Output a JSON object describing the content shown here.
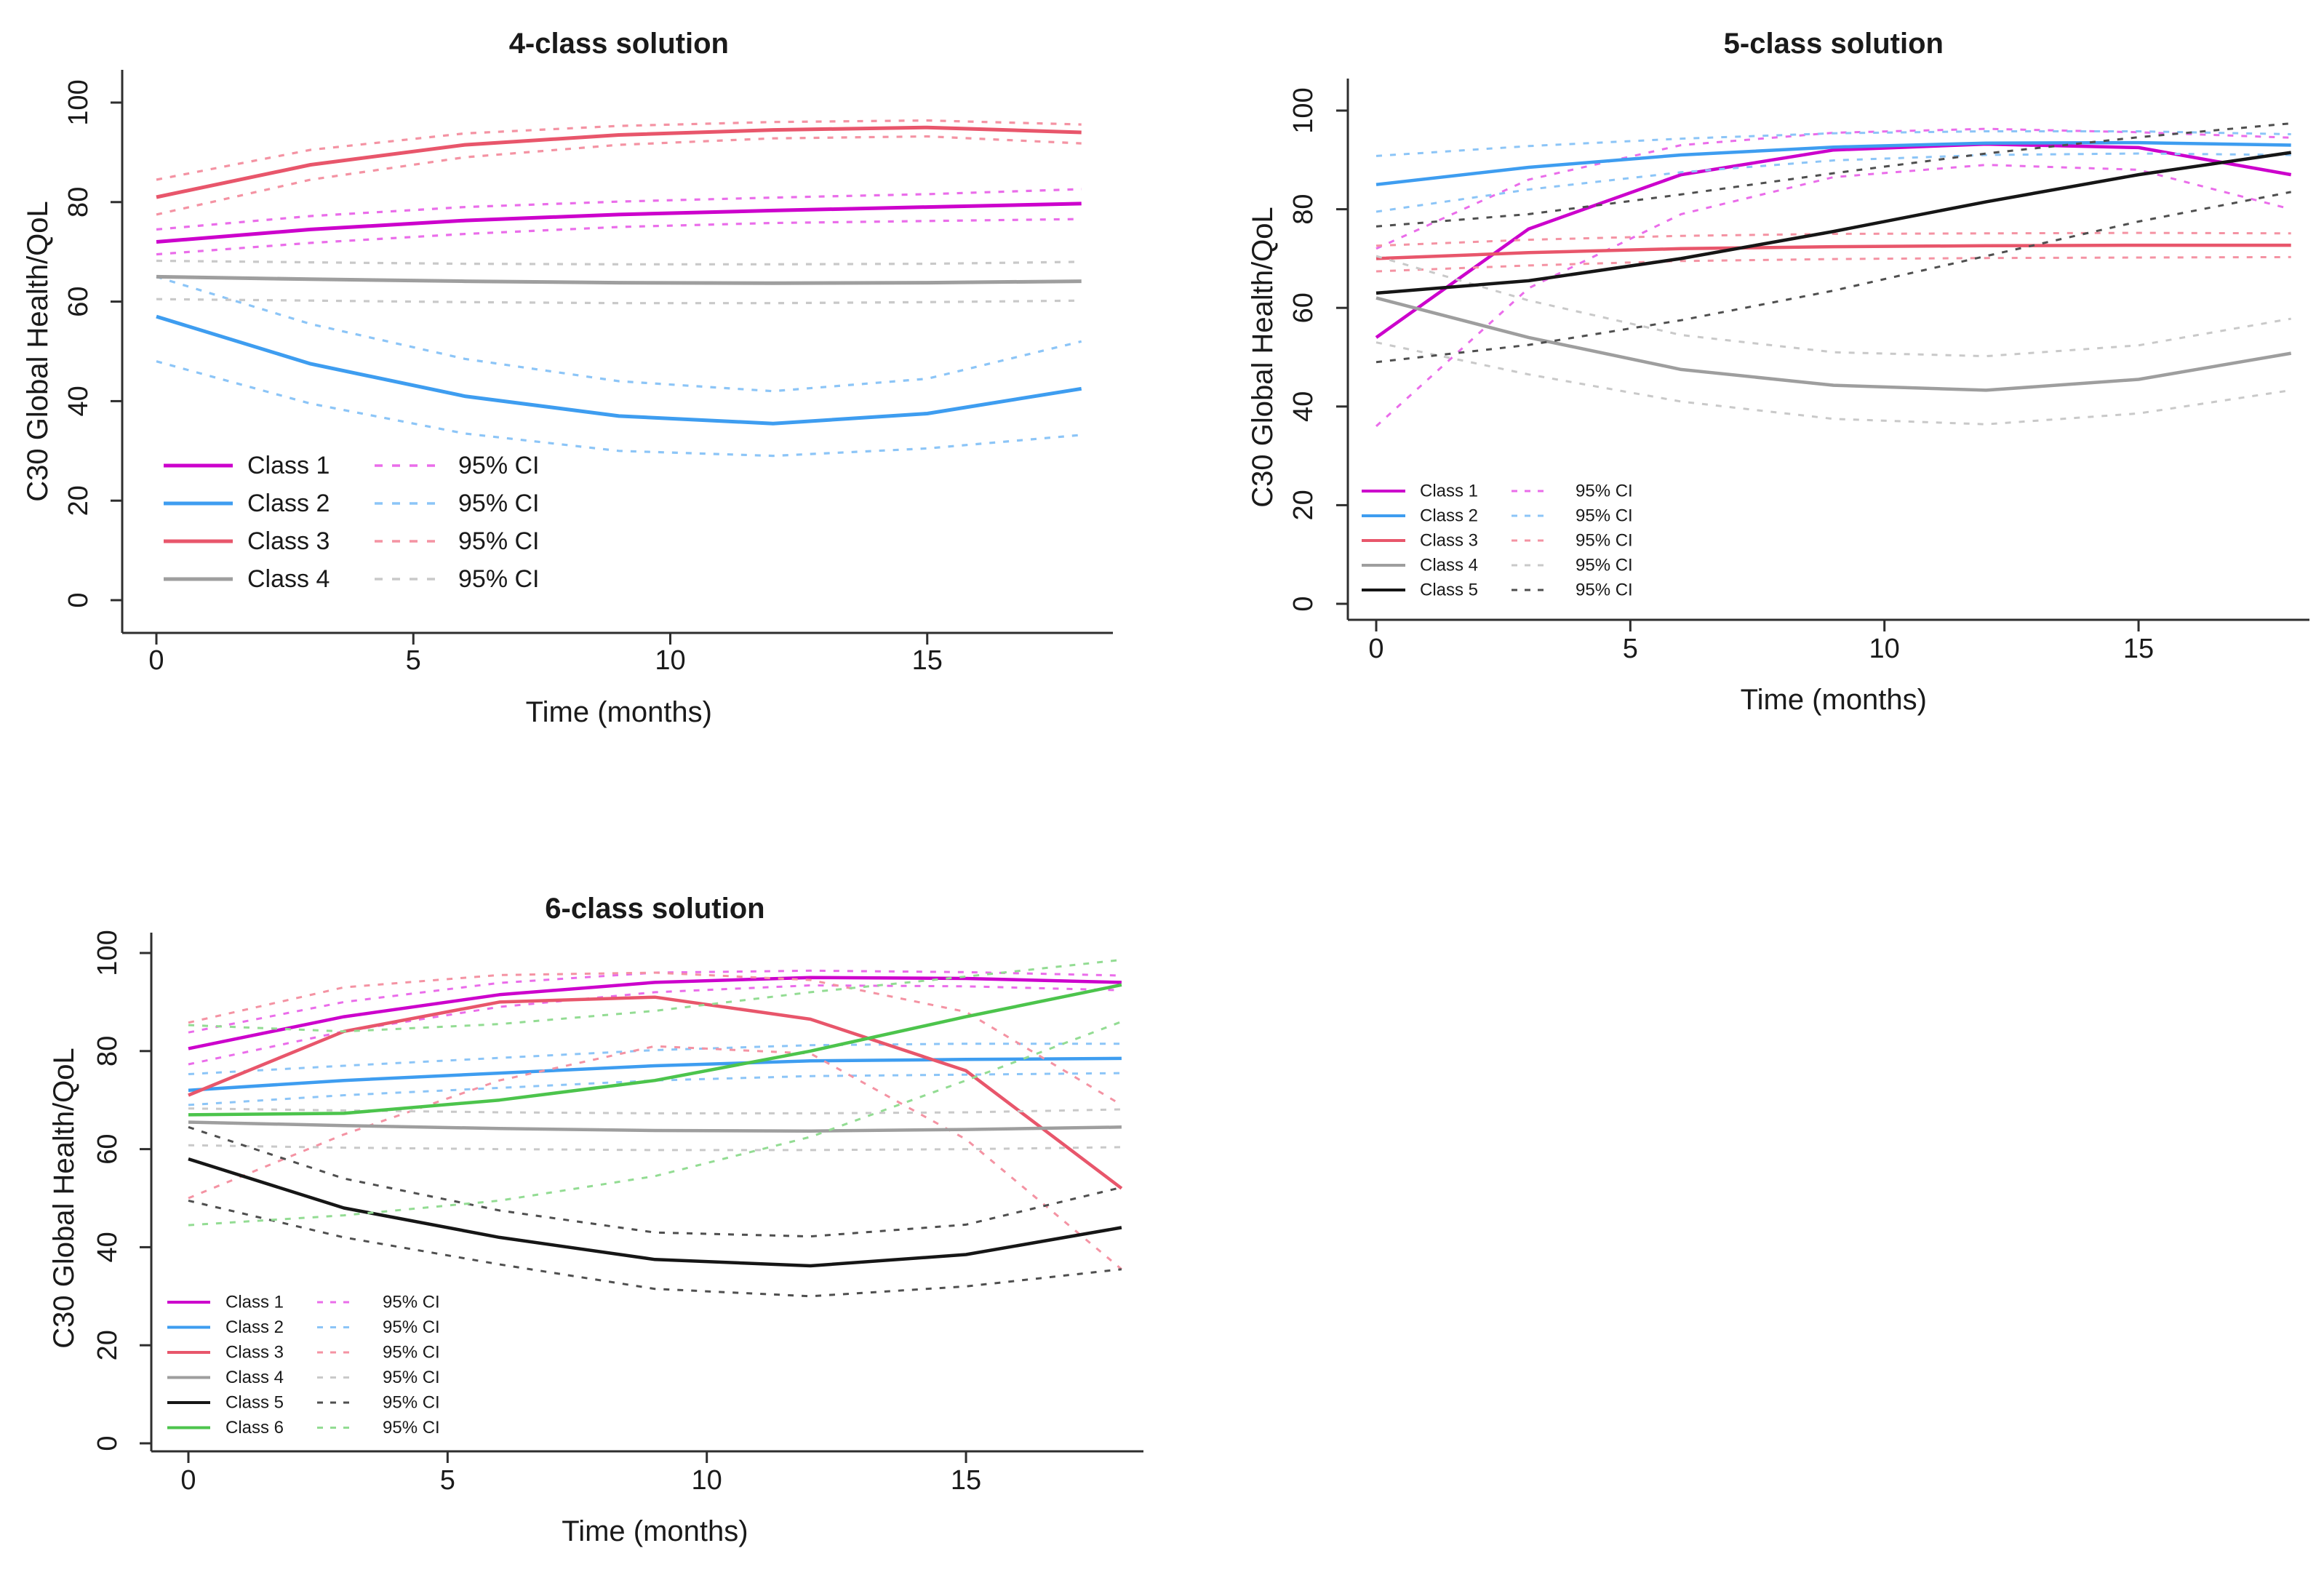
{
  "style": {
    "background": "#ffffff",
    "axis_color": "#2e2e2e",
    "text_color": "#1a1a1a"
  },
  "chart_data": [
    {
      "id": "four-class",
      "type": "line",
      "title": "4-class solution",
      "xlabel": "Time (months)",
      "ylabel": "C30 Global Health/QoL",
      "xlim": [
        0,
        18
      ],
      "ylim": [
        0,
        100
      ],
      "xticks": [
        0,
        5,
        10,
        15
      ],
      "yticks": [
        0,
        20,
        40,
        60,
        80,
        100
      ],
      "grid": false,
      "legend_position": "bottom-left",
      "ci_label": "95% CI",
      "x": [
        0,
        3,
        6,
        9,
        12,
        15,
        18
      ],
      "series": [
        {
          "name": "Class 1",
          "color": "#cc00cc",
          "ci_color": "#ea6dea",
          "mean": [
            72,
            74.5,
            76.3,
            77.5,
            78.3,
            79,
            79.7
          ],
          "lower": [
            69.5,
            71.8,
            73.6,
            75,
            75.8,
            76.2,
            76.6
          ],
          "upper": [
            74.5,
            77.2,
            79,
            80.1,
            80.9,
            81.6,
            82.6
          ]
        },
        {
          "name": "Class 2",
          "color": "#3e9df0",
          "ci_color": "#8cc5f7",
          "mean": [
            57,
            47.5,
            41,
            37,
            35.5,
            37.5,
            42.5
          ],
          "lower": [
            48,
            39.5,
            33.5,
            30,
            29,
            30.5,
            33.2
          ],
          "upper": [
            65,
            55.5,
            48.5,
            44,
            42,
            44.5,
            52
          ]
        },
        {
          "name": "Class 3",
          "color": "#e8566b",
          "ci_color": "#f493a3",
          "mean": [
            81,
            87.5,
            91.5,
            93.5,
            94.5,
            95,
            94
          ],
          "lower": [
            77.5,
            84.5,
            89,
            91.5,
            92.8,
            93.2,
            91.8
          ],
          "upper": [
            84.5,
            90.5,
            93.8,
            95.3,
            96.1,
            96.4,
            95.6
          ]
        },
        {
          "name": "Class 4",
          "color": "#9e9e9e",
          "ci_color": "#c9c9c9",
          "mean": [
            65,
            64.5,
            64.1,
            63.8,
            63.7,
            63.8,
            64.1
          ],
          "lower": [
            60.5,
            60.2,
            59.9,
            59.7,
            59.7,
            59.9,
            60.2
          ],
          "upper": [
            68.2,
            67.9,
            67.6,
            67.5,
            67.5,
            67.6,
            68
          ]
        }
      ]
    },
    {
      "id": "five-class",
      "type": "line",
      "title": "5-class solution",
      "xlabel": "Time (months)",
      "ylabel": "C30 Global Health/QoL",
      "xlim": [
        0,
        18
      ],
      "ylim": [
        0,
        100
      ],
      "xticks": [
        0,
        5,
        10,
        15
      ],
      "yticks": [
        0,
        20,
        40,
        60,
        80,
        100
      ],
      "grid": false,
      "legend_position": "bottom-left",
      "ci_label": "95% CI",
      "x": [
        0,
        3,
        6,
        9,
        12,
        15,
        18
      ],
      "series": [
        {
          "name": "Class 1",
          "color": "#cc00cc",
          "ci_color": "#ea6dea",
          "mean": [
            54,
            76,
            87,
            92,
            93.2,
            92.5,
            87
          ],
          "lower": [
            36,
            64,
            79,
            86.5,
            89,
            88,
            80
          ],
          "upper": [
            72,
            86,
            93,
            95.5,
            96.3,
            95.6,
            94.5
          ]
        },
        {
          "name": "Class 2",
          "color": "#3e9df0",
          "ci_color": "#8cc5f7",
          "mean": [
            85,
            88.5,
            91,
            92.6,
            93.4,
            93.5,
            93
          ],
          "lower": [
            79.5,
            84,
            87.5,
            89.9,
            91,
            91.3,
            91
          ],
          "upper": [
            90.8,
            92.8,
            94.3,
            95.4,
            95.8,
            95.8,
            95.2
          ]
        },
        {
          "name": "Class 3",
          "color": "#e8566b",
          "ci_color": "#f493a3",
          "mean": [
            70,
            71.2,
            72,
            72.4,
            72.6,
            72.7,
            72.7
          ],
          "lower": [
            67.4,
            68.6,
            69.5,
            69.9,
            70.1,
            70.2,
            70.3
          ],
          "upper": [
            72.6,
            73.8,
            74.6,
            75,
            75.1,
            75.2,
            75.1
          ]
        },
        {
          "name": "Class 4",
          "color": "#9e9e9e",
          "ci_color": "#c9c9c9",
          "mean": [
            62,
            54,
            47.5,
            44.3,
            43.3,
            45.5,
            50.8
          ],
          "lower": [
            53,
            46.5,
            41,
            37.5,
            36.4,
            38.6,
            43.3
          ],
          "upper": [
            70.5,
            61.5,
            54.5,
            51,
            50.2,
            52.4,
            57.8
          ]
        },
        {
          "name": "Class 5",
          "color": "#161616",
          "ci_color": "#4f4f4f",
          "mean": [
            63,
            65.5,
            70,
            75.5,
            81.5,
            87,
            91.5
          ],
          "lower": [
            49,
            52.5,
            57.5,
            63.5,
            70.5,
            77.5,
            83.5
          ],
          "upper": [
            76.5,
            79,
            83,
            87.3,
            91.3,
            94.6,
            97.4
          ]
        }
      ]
    },
    {
      "id": "six-class",
      "type": "line",
      "title": "6-class solution",
      "xlabel": "Time (months)",
      "ylabel": "C30 Global Health/QoL",
      "xlim": [
        0,
        18
      ],
      "ylim": [
        0,
        100
      ],
      "xticks": [
        0,
        5,
        10,
        15
      ],
      "yticks": [
        0,
        20,
        40,
        60,
        80,
        100
      ],
      "grid": false,
      "legend_position": "bottom-left",
      "ci_label": "95% CI",
      "x": [
        0,
        3,
        6,
        9,
        12,
        15,
        18
      ],
      "series": [
        {
          "name": "Class 1",
          "color": "#cc00cc",
          "ci_color": "#ea6dea",
          "mean": [
            80.5,
            87,
            91.5,
            94,
            95,
            94.8,
            94
          ],
          "lower": [
            77.3,
            84,
            89,
            92,
            93.4,
            93.2,
            92.4
          ],
          "upper": [
            83.8,
            90,
            93.9,
            96,
            96.4,
            96.1,
            95.4
          ]
        },
        {
          "name": "Class 2",
          "color": "#3e9df0",
          "ci_color": "#8cc5f7",
          "mean": [
            72,
            74,
            75.5,
            77,
            78,
            78.3,
            78.5
          ],
          "lower": [
            69,
            71,
            72.5,
            74,
            74.9,
            75.2,
            75.5
          ],
          "upper": [
            75.3,
            77,
            78.6,
            80.2,
            81.2,
            81.5,
            81.5
          ]
        },
        {
          "name": "Class 3",
          "color": "#e8566b",
          "ci_color": "#f493a3",
          "mean": [
            71,
            84,
            90,
            91,
            86.5,
            76,
            52
          ],
          "lower": [
            50,
            63,
            74,
            81,
            79.5,
            62,
            35.5
          ],
          "upper": [
            85.8,
            93,
            95.5,
            96,
            94.5,
            88,
            69
          ]
        },
        {
          "name": "Class 4",
          "color": "#9e9e9e",
          "ci_color": "#c9c9c9",
          "mean": [
            65.5,
            64.8,
            64.2,
            63.8,
            63.7,
            64,
            64.5
          ],
          "lower": [
            60.8,
            60.3,
            60,
            59.8,
            59.8,
            60,
            60.4
          ],
          "upper": [
            68.3,
            67.9,
            67.5,
            67.3,
            67.3,
            67.5,
            68.1
          ]
        },
        {
          "name": "Class 5",
          "color": "#161616",
          "ci_color": "#4f4f4f",
          "mean": [
            58,
            48,
            42,
            37.5,
            36.2,
            38.5,
            44
          ],
          "lower": [
            49.5,
            42,
            36.5,
            31.5,
            30,
            32,
            35.5
          ],
          "upper": [
            64.5,
            54,
            47.5,
            43,
            42.2,
            44.6,
            52.2
          ]
        },
        {
          "name": "Class 6",
          "color": "#4cc44c",
          "ci_color": "#93dc93",
          "mean": [
            67,
            67.3,
            70,
            74,
            80,
            87,
            93.5
          ],
          "lower": [
            44.5,
            46.5,
            49.5,
            54.5,
            62.5,
            74,
            86
          ],
          "upper": [
            85.3,
            84,
            85.5,
            88.2,
            92,
            95.2,
            98.6
          ]
        }
      ]
    }
  ]
}
